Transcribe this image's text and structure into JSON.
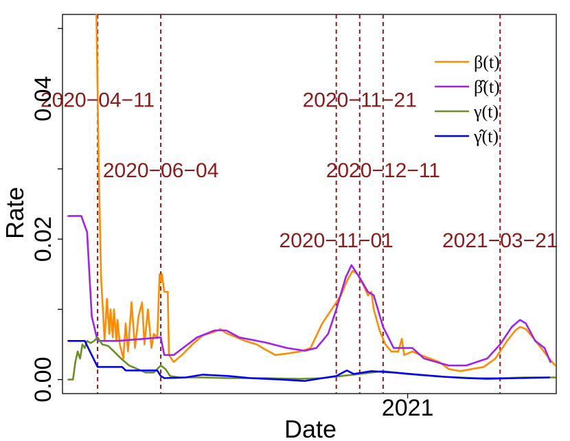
{
  "chart_data": {
    "type": "line",
    "xlabel": "Date",
    "ylabel": "Rate",
    "x_ticks": [
      {
        "date": "2021-01-01",
        "label": "2021"
      }
    ],
    "y_ticks": [
      {
        "value": 0.0,
        "label": "0.00"
      },
      {
        "value": 0.02,
        "label": "0.02"
      },
      {
        "value": 0.04,
        "label": "0.04"
      }
    ],
    "xlim": [
      "2020-03-12",
      "2021-05-08"
    ],
    "ylim": [
      -0.002,
      0.052
    ],
    "grid": false,
    "legend": {
      "position": "top-right",
      "entries": [
        {
          "label": "β(t)",
          "color": "#FF8C00"
        },
        {
          "label": "β̂(t)",
          "color": "#A020F0"
        },
        {
          "label": "γ(t)",
          "color": "#6B8E23"
        },
        {
          "label": "γ̂(t)",
          "color": "#0000FF"
        }
      ]
    },
    "changepoints": [
      {
        "date": "2020-04-11",
        "label": "2020−04−11",
        "label_y": 0.04
      },
      {
        "date": "2020-06-04",
        "label": "2020−06−04",
        "label_y": 0.03
      },
      {
        "date": "2020-11-01",
        "label": "2020−11−01",
        "label_y": 0.02
      },
      {
        "date": "2020-11-21",
        "label": "2020−11−21",
        "label_y": 0.04
      },
      {
        "date": "2020-12-11",
        "label": "2020−12−11",
        "label_y": 0.03
      },
      {
        "date": "2021-03-21",
        "label": "2021−03−21",
        "label_y": 0.02
      }
    ],
    "changepoint_color": "#8B1A1A",
    "series": [
      {
        "name": "β(t)",
        "color": "#FF8C00",
        "points": [
          [
            "2020-04-10",
            0.052
          ],
          [
            "2020-04-12",
            0.03
          ],
          [
            "2020-04-14",
            0.0145
          ],
          [
            "2020-04-17",
            0.0055
          ],
          [
            "2020-04-19",
            0.0115
          ],
          [
            "2020-04-21",
            0.0065
          ],
          [
            "2020-04-22",
            0.01
          ],
          [
            "2020-04-24",
            0.006
          ],
          [
            "2020-04-25",
            0.01
          ],
          [
            "2020-04-27",
            0.0055
          ],
          [
            "2020-04-28",
            0.0085
          ],
          [
            "2020-04-30",
            0.005
          ],
          [
            "2020-05-03",
            0.003
          ],
          [
            "2020-05-05",
            0.008
          ],
          [
            "2020-05-07",
            0.004
          ],
          [
            "2020-05-10",
            0.011
          ],
          [
            "2020-05-13",
            0.0045
          ],
          [
            "2020-05-16",
            0.009
          ],
          [
            "2020-05-19",
            0.011
          ],
          [
            "2020-05-21",
            0.005
          ],
          [
            "2020-05-24",
            0.01
          ],
          [
            "2020-05-27",
            0.0045
          ],
          [
            "2020-05-29",
            0.0065
          ],
          [
            "2020-06-01",
            0.006
          ],
          [
            "2020-06-03",
            0.015
          ],
          [
            "2020-06-04",
            0.014
          ],
          [
            "2020-06-05",
            0.015
          ],
          [
            "2020-06-07",
            0.0125
          ],
          [
            "2020-06-10",
            0.0125
          ],
          [
            "2020-06-11",
            0.0035
          ],
          [
            "2020-06-15",
            0.0025
          ],
          [
            "2020-06-22",
            0.0035
          ],
          [
            "2020-07-01",
            0.005
          ],
          [
            "2020-07-10",
            0.0063
          ],
          [
            "2020-07-20",
            0.0068
          ],
          [
            "2020-07-25",
            0.0072
          ],
          [
            "2020-07-30",
            0.0066
          ],
          [
            "2020-08-05",
            0.0062
          ],
          [
            "2020-08-15",
            0.0055
          ],
          [
            "2020-08-25",
            0.005
          ],
          [
            "2020-09-01",
            0.0043
          ],
          [
            "2020-09-10",
            0.0035
          ],
          [
            "2020-09-20",
            0.0037
          ],
          [
            "2020-10-01",
            0.004
          ],
          [
            "2020-10-10",
            0.0045
          ],
          [
            "2020-10-20",
            0.008
          ],
          [
            "2020-10-28",
            0.01
          ],
          [
            "2020-11-05",
            0.012
          ],
          [
            "2020-11-10",
            0.014
          ],
          [
            "2020-11-15",
            0.0155
          ],
          [
            "2020-11-19",
            0.015
          ],
          [
            "2020-11-24",
            0.0135
          ],
          [
            "2020-11-28",
            0.012
          ],
          [
            "2020-12-01",
            0.0125
          ],
          [
            "2020-12-03",
            0.01
          ],
          [
            "2020-12-08",
            0.007
          ],
          [
            "2020-12-13",
            0.005
          ],
          [
            "2020-12-18",
            0.004
          ],
          [
            "2020-12-24",
            0.004
          ],
          [
            "2020-12-27",
            0.0058
          ],
          [
            "2020-12-29",
            0.0035
          ],
          [
            "2021-01-05",
            0.004
          ],
          [
            "2021-01-12",
            0.0035
          ],
          [
            "2021-01-20",
            0.003
          ],
          [
            "2021-01-28",
            0.0025
          ],
          [
            "2021-02-05",
            0.0015
          ],
          [
            "2021-02-15",
            0.0012
          ],
          [
            "2021-02-25",
            0.0015
          ],
          [
            "2021-03-07",
            0.0018
          ],
          [
            "2021-03-17",
            0.003
          ],
          [
            "2021-03-27",
            0.0055
          ],
          [
            "2021-04-03",
            0.007
          ],
          [
            "2021-04-07",
            0.0075
          ],
          [
            "2021-04-12",
            0.0072
          ],
          [
            "2021-04-18",
            0.006
          ],
          [
            "2021-04-25",
            0.0045
          ],
          [
            "2021-05-02",
            0.003
          ],
          [
            "2021-05-07",
            0.002
          ]
        ]
      },
      {
        "name": "β̂(t)",
        "color": "#A020F0",
        "points": [
          [
            "2020-03-17",
            0.0233
          ],
          [
            "2020-03-28",
            0.0233
          ],
          [
            "2020-04-02",
            0.021
          ],
          [
            "2020-04-06",
            0.009
          ],
          [
            "2020-04-11",
            0.0055
          ],
          [
            "2020-04-28",
            0.0055
          ],
          [
            "2020-05-20",
            0.0058
          ],
          [
            "2020-06-04",
            0.006
          ],
          [
            "2020-06-07",
            0.0035
          ],
          [
            "2020-06-15",
            0.0035
          ],
          [
            "2020-07-05",
            0.006
          ],
          [
            "2020-07-20",
            0.007
          ],
          [
            "2020-07-30",
            0.007
          ],
          [
            "2020-08-10",
            0.006
          ],
          [
            "2020-09-01",
            0.0053
          ],
          [
            "2020-09-20",
            0.0045
          ],
          [
            "2020-10-05",
            0.0041
          ],
          [
            "2020-10-15",
            0.0045
          ],
          [
            "2020-10-25",
            0.0065
          ],
          [
            "2020-11-01",
            0.01
          ],
          [
            "2020-11-09",
            0.0145
          ],
          [
            "2020-11-14",
            0.0163
          ],
          [
            "2020-11-21",
            0.0145
          ],
          [
            "2020-11-28",
            0.0125
          ],
          [
            "2020-12-03",
            0.012
          ],
          [
            "2020-12-11",
            0.0075
          ],
          [
            "2020-12-20",
            0.0045
          ],
          [
            "2021-01-05",
            0.0045
          ],
          [
            "2021-01-15",
            0.003
          ],
          [
            "2021-02-05",
            0.002
          ],
          [
            "2021-02-20",
            0.002
          ],
          [
            "2021-03-10",
            0.003
          ],
          [
            "2021-03-21",
            0.005
          ],
          [
            "2021-03-31",
            0.0075
          ],
          [
            "2021-04-07",
            0.0085
          ],
          [
            "2021-04-12",
            0.008
          ],
          [
            "2021-04-20",
            0.0055
          ],
          [
            "2021-04-28",
            0.0045
          ],
          [
            "2021-05-03",
            0.0025
          ]
        ]
      },
      {
        "name": "γ(t)",
        "color": "#6B8E23",
        "points": [
          [
            "2020-03-17",
            0.0
          ],
          [
            "2020-03-21",
            0.0
          ],
          [
            "2020-03-23",
            0.0025
          ],
          [
            "2020-03-25",
            0.004
          ],
          [
            "2020-03-27",
            0.003
          ],
          [
            "2020-03-29",
            0.005
          ],
          [
            "2020-03-31",
            0.0045
          ],
          [
            "2020-04-02",
            0.0055
          ],
          [
            "2020-04-05",
            0.0052
          ],
          [
            "2020-04-08",
            0.0055
          ],
          [
            "2020-04-11",
            0.006
          ],
          [
            "2020-04-15",
            0.005
          ],
          [
            "2020-04-20",
            0.0048
          ],
          [
            "2020-04-25",
            0.004
          ],
          [
            "2020-05-01",
            0.003
          ],
          [
            "2020-05-08",
            0.002
          ],
          [
            "2020-05-15",
            0.0015
          ],
          [
            "2020-05-22",
            0.001
          ],
          [
            "2020-05-29",
            0.001
          ],
          [
            "2020-06-04",
            0.002
          ],
          [
            "2020-06-08",
            0.0015
          ],
          [
            "2020-06-12",
            0.0005
          ],
          [
            "2020-06-20",
            0.0003
          ],
          [
            "2020-07-10",
            0.0003
          ],
          [
            "2020-08-01",
            0.0002
          ],
          [
            "2020-09-01",
            0.0002
          ],
          [
            "2020-10-01",
            0.0001
          ],
          [
            "2020-10-20",
            0.0002
          ],
          [
            "2020-11-05",
            0.0005
          ],
          [
            "2020-11-21",
            0.0008
          ],
          [
            "2020-12-11",
            0.0012
          ],
          [
            "2021-01-01",
            0.0008
          ],
          [
            "2021-02-01",
            0.0004
          ],
          [
            "2021-03-01",
            0.0002
          ],
          [
            "2021-03-21",
            0.0002
          ],
          [
            "2021-04-10",
            0.0003
          ],
          [
            "2021-05-07",
            0.0003
          ]
        ]
      },
      {
        "name": "γ̂(t)",
        "color": "#0000FF",
        "points": [
          [
            "2020-03-17",
            0.0055
          ],
          [
            "2020-03-31",
            0.0055
          ],
          [
            "2020-04-11",
            0.0018
          ],
          [
            "2020-05-02",
            0.0018
          ],
          [
            "2020-05-05",
            0.0013
          ],
          [
            "2020-06-01",
            0.0013
          ],
          [
            "2020-06-04",
            0.0005
          ],
          [
            "2020-06-07",
            0.0002
          ],
          [
            "2020-06-25",
            0.0003
          ],
          [
            "2020-07-10",
            0.0007
          ],
          [
            "2020-08-01",
            0.0005
          ],
          [
            "2020-08-20",
            0.0002
          ],
          [
            "2020-09-15",
            0.0
          ],
          [
            "2020-10-05",
            -0.0002
          ],
          [
            "2020-10-20",
            0.0002
          ],
          [
            "2020-11-01",
            0.0005
          ],
          [
            "2020-11-10",
            0.0013
          ],
          [
            "2020-11-16",
            0.0008
          ],
          [
            "2020-12-01",
            0.0012
          ],
          [
            "2020-12-20",
            0.001
          ],
          [
            "2021-01-10",
            0.0007
          ],
          [
            "2021-02-01",
            0.0004
          ],
          [
            "2021-02-20",
            0.0002
          ],
          [
            "2021-03-10",
            0.0001
          ],
          [
            "2021-04-05",
            0.0002
          ],
          [
            "2021-05-02",
            0.0003
          ]
        ]
      }
    ]
  }
}
